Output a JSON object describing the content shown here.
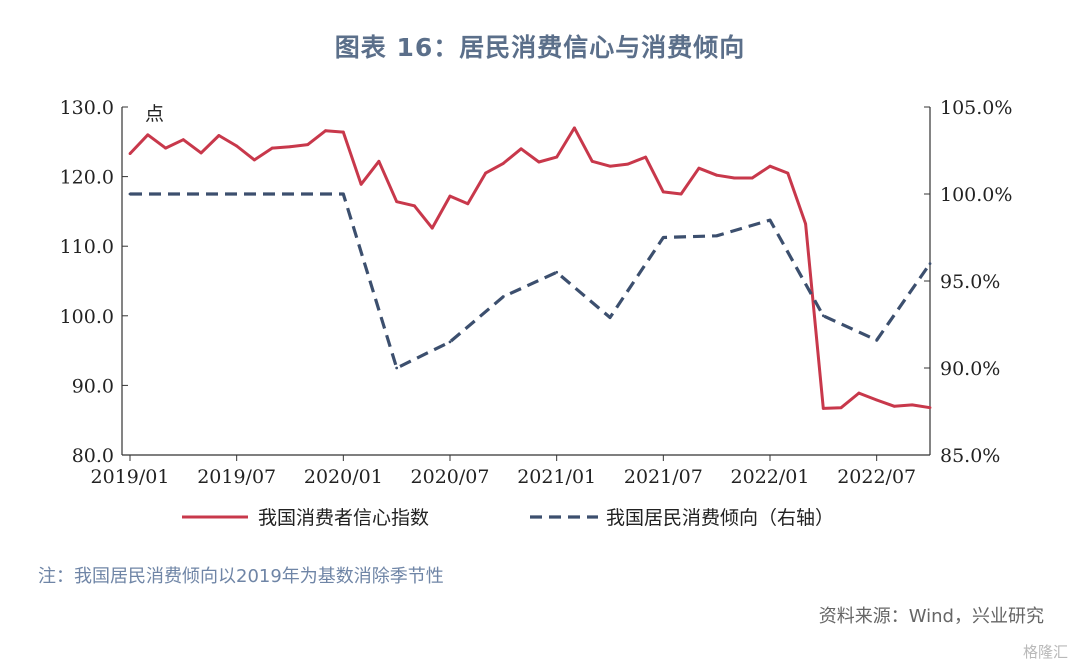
{
  "title": "图表 16：居民消费信心与消费倾向",
  "note": "注：我国居民消费倾向以2019年为基数消除季节性",
  "source": "资料来源：Wind，兴业研究",
  "watermark": "格隆汇",
  "colors": {
    "series1": "#c8384b",
    "series2": "#3c4f6e",
    "axis": "#333333",
    "title": "#5b6f8a",
    "note": "#6f85a6"
  },
  "chart_data": {
    "type": "line",
    "left_unit_label": "点",
    "x_ticks": [
      "2019/01",
      "2019/07",
      "2020/01",
      "2020/07",
      "2021/01",
      "2021/07",
      "2022/01",
      "2022/07"
    ],
    "left_axis": {
      "ylim": [
        80,
        130
      ],
      "ticks": [
        "80.0",
        "90.0",
        "100.0",
        "110.0",
        "120.0",
        "130.0"
      ]
    },
    "right_axis": {
      "ylim": [
        85,
        105
      ],
      "ticks": [
        "85.0%",
        "90.0%",
        "95.0%",
        "100.0%",
        "105.0%"
      ]
    },
    "series": [
      {
        "name": "我国消费者信心指数",
        "axis": "left",
        "style": "solid",
        "x": [
          "2019/01",
          "2019/02",
          "2019/03",
          "2019/04",
          "2019/05",
          "2019/06",
          "2019/07",
          "2019/08",
          "2019/09",
          "2019/10",
          "2019/11",
          "2019/12",
          "2020/01",
          "2020/02",
          "2020/03",
          "2020/04",
          "2020/05",
          "2020/06",
          "2020/07",
          "2020/08",
          "2020/09",
          "2020/10",
          "2020/11",
          "2020/12",
          "2021/01",
          "2021/02",
          "2021/03",
          "2021/04",
          "2021/05",
          "2021/06",
          "2021/07",
          "2021/08",
          "2021/09",
          "2021/10",
          "2021/11",
          "2021/12",
          "2022/01",
          "2022/02",
          "2022/03",
          "2022/04",
          "2022/05",
          "2022/06",
          "2022/07",
          "2022/08",
          "2022/09",
          "2022/10"
        ],
        "values": [
          123.3,
          126.0,
          124.1,
          125.3,
          123.4,
          125.9,
          124.4,
          122.4,
          124.1,
          124.3,
          124.6,
          126.6,
          126.4,
          118.9,
          122.2,
          116.4,
          115.8,
          112.6,
          117.2,
          116.1,
          120.5,
          121.9,
          124.0,
          122.1,
          122.8,
          127.0,
          122.2,
          121.5,
          121.8,
          122.8,
          117.8,
          117.5,
          121.2,
          120.2,
          119.8,
          119.8,
          121.5,
          120.5,
          113.2,
          86.7,
          86.8,
          88.9,
          87.9,
          87.0,
          87.2,
          86.8
        ]
      },
      {
        "name": "我国居民消费倾向（右轴）",
        "axis": "right",
        "style": "dashed",
        "x": [
          "2019/01",
          "2020/01",
          "2020/04",
          "2020/07",
          "2020/10",
          "2021/01",
          "2021/04",
          "2021/07",
          "2021/10",
          "2022/01",
          "2022/04",
          "2022/07",
          "2022/10"
        ],
        "values": [
          100.0,
          100.0,
          90.0,
          91.5,
          94.1,
          95.5,
          92.9,
          97.5,
          97.6,
          98.5,
          93.0,
          91.6,
          96.0
        ]
      }
    ]
  }
}
